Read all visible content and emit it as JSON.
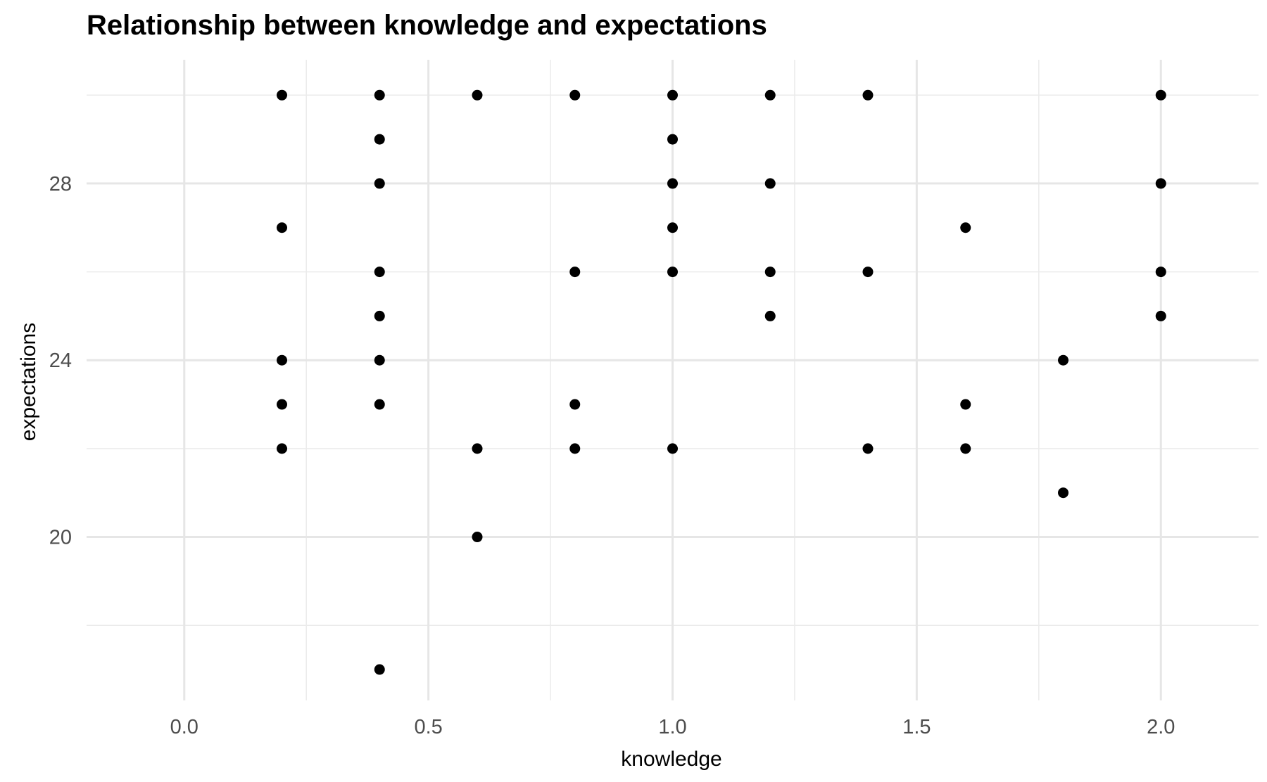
{
  "chart_data": {
    "type": "scatter",
    "title": "Relationship between knowledge and expectations",
    "xlabel": "knowledge",
    "ylabel": "expectations",
    "xlim": [
      -0.2,
      2.2
    ],
    "ylim": [
      16.3,
      30.8
    ],
    "x_ticks": [
      "0.0",
      "0.5",
      "1.0",
      "1.5",
      "2.0"
    ],
    "y_ticks": [
      "20",
      "24",
      "28"
    ],
    "grid": true,
    "legend": "none",
    "point_color": "#000000",
    "points": [
      {
        "x": 0.2,
        "y": 30
      },
      {
        "x": 0.2,
        "y": 27
      },
      {
        "x": 0.2,
        "y": 24
      },
      {
        "x": 0.2,
        "y": 23
      },
      {
        "x": 0.2,
        "y": 22
      },
      {
        "x": 0.4,
        "y": 30
      },
      {
        "x": 0.4,
        "y": 29
      },
      {
        "x": 0.4,
        "y": 28
      },
      {
        "x": 0.4,
        "y": 26
      },
      {
        "x": 0.4,
        "y": 25
      },
      {
        "x": 0.4,
        "y": 24
      },
      {
        "x": 0.4,
        "y": 23
      },
      {
        "x": 0.4,
        "y": 17
      },
      {
        "x": 0.6,
        "y": 30
      },
      {
        "x": 0.6,
        "y": 22
      },
      {
        "x": 0.6,
        "y": 20
      },
      {
        "x": 0.8,
        "y": 30
      },
      {
        "x": 0.8,
        "y": 26
      },
      {
        "x": 0.8,
        "y": 23
      },
      {
        "x": 0.8,
        "y": 22
      },
      {
        "x": 1.0,
        "y": 30
      },
      {
        "x": 1.0,
        "y": 29
      },
      {
        "x": 1.0,
        "y": 28
      },
      {
        "x": 1.0,
        "y": 27
      },
      {
        "x": 1.0,
        "y": 26
      },
      {
        "x": 1.0,
        "y": 22
      },
      {
        "x": 1.2,
        "y": 30
      },
      {
        "x": 1.2,
        "y": 28
      },
      {
        "x": 1.2,
        "y": 26
      },
      {
        "x": 1.2,
        "y": 25
      },
      {
        "x": 1.4,
        "y": 30
      },
      {
        "x": 1.4,
        "y": 26
      },
      {
        "x": 1.4,
        "y": 22
      },
      {
        "x": 1.6,
        "y": 27
      },
      {
        "x": 1.6,
        "y": 23
      },
      {
        "x": 1.6,
        "y": 22
      },
      {
        "x": 1.8,
        "y": 24
      },
      {
        "x": 1.8,
        "y": 21
      },
      {
        "x": 2.0,
        "y": 30
      },
      {
        "x": 2.0,
        "y": 28
      },
      {
        "x": 2.0,
        "y": 26
      },
      {
        "x": 2.0,
        "y": 25
      }
    ]
  }
}
